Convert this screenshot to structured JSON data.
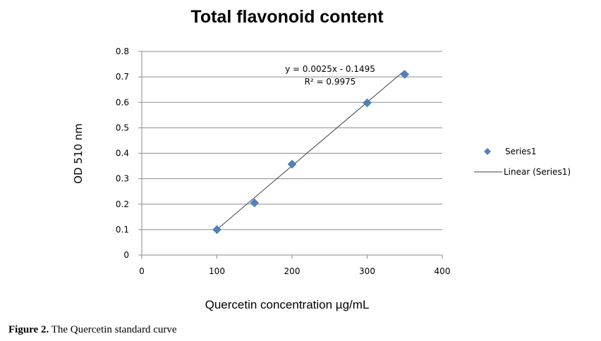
{
  "chart_data": {
    "type": "scatter",
    "title": "Total flavonoid content",
    "xlabel": "Quercetin concentration µg/mL",
    "ylabel": "OD 510 nm",
    "xlim": [
      0,
      400
    ],
    "ylim": [
      0,
      0.8
    ],
    "xticks": [
      "0",
      "100",
      "200",
      "300",
      "400"
    ],
    "yticks": [
      "0",
      "0.1",
      "0.2",
      "0.3",
      "0.4",
      "0.5",
      "0.6",
      "0.7",
      "0.8"
    ],
    "grid": "horizontal",
    "legend_position": "right",
    "series": [
      {
        "name": "Series1",
        "marker": "diamond",
        "color": "#4f81bd",
        "x": [
          100,
          150,
          200,
          300,
          350
        ],
        "y": [
          0.1,
          0.205,
          0.357,
          0.598,
          0.71
        ]
      }
    ],
    "trendline": {
      "name": "Linear (Series1)",
      "color": "#404040",
      "slope": 0.0025,
      "intercept": -0.1495,
      "x_range": [
        100,
        350
      ],
      "equation": "y = 0.0025x - 0.1495",
      "r_squared": "R² = 0.9975"
    }
  },
  "caption": {
    "label": "Figure 2.",
    "text": " The Quercetin standard curve"
  }
}
